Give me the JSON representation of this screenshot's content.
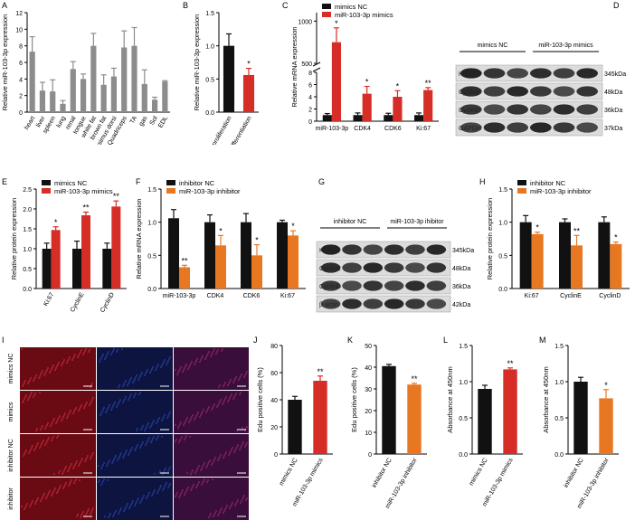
{
  "colors": {
    "grey": "#8c8c8c",
    "black": "#111111",
    "red": "#d62d27",
    "orange": "#e87722"
  },
  "chart_data": [
    {
      "letter": "A",
      "type": "bar",
      "ylabel": "Relative miR-103-3p expression",
      "ylim": [
        0,
        12
      ],
      "yticks": [
        "0",
        "2",
        "4",
        "6",
        "8",
        "10",
        "12"
      ],
      "categories": [
        "heart",
        "liver",
        "spleen",
        "lung",
        "renal",
        "tongue",
        "white fat",
        "brown fat",
        "Longissimus dorsi",
        "Quadriceps",
        "TA",
        "gas",
        "Sol",
        "EDL"
      ],
      "series": [
        {
          "color": "grey",
          "values": [
            7.3,
            2.6,
            2.5,
            1.0,
            5.2,
            4.0,
            8.0,
            3.3,
            4.3,
            7.8,
            8.0,
            3.4,
            1.5,
            3.7
          ],
          "errors": [
            1.8,
            1.0,
            1.4,
            0.4,
            0.9,
            0.6,
            1.5,
            1.2,
            1.0,
            2.0,
            2.2,
            1.7,
            0.3,
            0.1
          ]
        }
      ]
    },
    {
      "letter": "B",
      "type": "bar",
      "ylabel": "Relative miR-103-3p expression",
      "ylim": [
        0,
        1.5
      ],
      "yticks": [
        "0.0",
        "0.5",
        "1.0",
        "1.5"
      ],
      "categories": [
        "proliferation",
        "differentiation"
      ],
      "series": [
        {
          "colors": [
            "black",
            "red"
          ],
          "values": [
            1.0,
            0.56
          ],
          "errors": [
            0.18,
            0.1
          ]
        }
      ],
      "sig": [
        "",
        "*"
      ]
    },
    {
      "letter": "C",
      "type": "bar",
      "ylabel": "Relative mRNA expression",
      "broken_axis": true,
      "ylim_low": [
        0,
        8
      ],
      "yticks_low": [
        "0",
        "2",
        "4",
        "6",
        "8"
      ],
      "ylim_high": [
        500,
        1100
      ],
      "yticks_high": [
        "500",
        "1000"
      ],
      "categories": [
        "miR-103-3p",
        "CDK4",
        "CDK6",
        "Ki:67"
      ],
      "series": [
        {
          "name": "mimics NC",
          "color": "black",
          "values": [
            1.0,
            1.0,
            1.0,
            1.0
          ],
          "errors": [
            0.25,
            0.35,
            0.3,
            0.35
          ]
        },
        {
          "name": "miR-103-3p mimics",
          "color": "red",
          "values": [
            750,
            4.5,
            4.0,
            5.1
          ],
          "errors": [
            170,
            1.2,
            1.0,
            0.4
          ]
        }
      ],
      "sig": [
        "*",
        "*",
        "*",
        "**"
      ]
    },
    {
      "letter": "E",
      "type": "bar",
      "ylabel": "Relative protein expression",
      "ylim": [
        0,
        2.5
      ],
      "yticks": [
        "0.0",
        "0.5",
        "1.0",
        "1.5",
        "2.0",
        "2.5"
      ],
      "categories": [
        "Ki:67",
        "CyclinE",
        "CyclinD"
      ],
      "series": [
        {
          "name": "mimics NC",
          "color": "black",
          "values": [
            1.0,
            1.0,
            1.0
          ],
          "errors": [
            0.14,
            0.19,
            0.14
          ]
        },
        {
          "name": "miR-103-3p mimics",
          "color": "red",
          "values": [
            1.47,
            1.84,
            2.06
          ],
          "errors": [
            0.08,
            0.08,
            0.14
          ]
        }
      ],
      "sig": [
        "*",
        "**",
        "**"
      ]
    },
    {
      "letter": "F",
      "type": "bar",
      "ylabel": "Relative mRNA expression",
      "ylim": [
        0,
        1.5
      ],
      "yticks": [
        "0.0",
        "0.5",
        "1.0",
        "1.5"
      ],
      "categories": [
        "miR-103-3p",
        "CDK4",
        "CDK6",
        "Ki:67"
      ],
      "series": [
        {
          "name": "inhibitor NC",
          "color": "black",
          "values": [
            1.06,
            1.0,
            1.0,
            1.0
          ],
          "errors": [
            0.13,
            0.11,
            0.13,
            0.03
          ]
        },
        {
          "name": "miR-103-3p inhibitor",
          "color": "orange",
          "values": [
            0.32,
            0.65,
            0.5,
            0.8
          ],
          "errors": [
            0.03,
            0.15,
            0.16,
            0.07
          ]
        }
      ],
      "sig": [
        "**",
        "*",
        "*",
        "*"
      ]
    },
    {
      "letter": "H",
      "type": "bar",
      "ylabel": "Relative protein expression",
      "ylim": [
        0,
        1.5
      ],
      "yticks": [
        "0.0",
        "0.5",
        "1.0",
        "1.5"
      ],
      "categories": [
        "Ki:67",
        "CyclinE",
        "CyclinD"
      ],
      "series": [
        {
          "name": "inhibitor NC",
          "color": "black",
          "values": [
            1.0,
            1.0,
            1.0
          ],
          "errors": [
            0.1,
            0.05,
            0.08
          ]
        },
        {
          "name": "miR-103-3p inhibitor",
          "color": "orange",
          "values": [
            0.82,
            0.65,
            0.67
          ],
          "errors": [
            0.03,
            0.15,
            0.03
          ]
        }
      ],
      "sig": [
        "*",
        "**",
        "*"
      ]
    },
    {
      "letter": "J",
      "type": "bar",
      "ylabel": "Edu positive cells (%)",
      "ylim": [
        0,
        80
      ],
      "yticks": [
        "0",
        "20",
        "40",
        "60",
        "80"
      ],
      "categories": [
        "mimics NC",
        "miR-103-3p mimics"
      ],
      "series": [
        {
          "colors": [
            "black",
            "red"
          ],
          "values": [
            40,
            54
          ],
          "errors": [
            2.5,
            3.5
          ]
        }
      ],
      "sig": [
        "",
        "**"
      ]
    },
    {
      "letter": "K",
      "type": "bar",
      "ylabel": "Edu positive cells (%)",
      "ylim": [
        0,
        50
      ],
      "yticks": [
        "0",
        "10",
        "20",
        "30",
        "40",
        "50"
      ],
      "categories": [
        "inhibitor NC",
        "miR-103-3p inhibitor"
      ],
      "series": [
        {
          "colors": [
            "black",
            "orange"
          ],
          "values": [
            40.5,
            32
          ],
          "errors": [
            0.8,
            0.6
          ]
        }
      ],
      "sig": [
        "",
        "**"
      ]
    },
    {
      "letter": "L",
      "type": "bar",
      "ylabel": "Absorbance at 450nm",
      "ylim": [
        0,
        1.5
      ],
      "yticks": [
        "0.0",
        "0.5",
        "1.0",
        "1.5"
      ],
      "categories": [
        "mimics NC",
        "miR-103-3p mimics"
      ],
      "series": [
        {
          "colors": [
            "black",
            "red"
          ],
          "values": [
            0.9,
            1.17
          ],
          "errors": [
            0.05,
            0.02
          ]
        }
      ],
      "sig": [
        "",
        "**"
      ]
    },
    {
      "letter": "M",
      "type": "bar",
      "ylabel": "Absorbance at 450nm",
      "ylim": [
        0,
        1.5
      ],
      "yticks": [
        "0.0",
        "0.5",
        "1.0",
        "1.5"
      ],
      "categories": [
        "inhibitor NC",
        "miR-103-3p inhibitor"
      ],
      "series": [
        {
          "colors": [
            "black",
            "orange"
          ],
          "values": [
            1.0,
            0.77
          ],
          "errors": [
            0.06,
            0.12
          ]
        }
      ],
      "sig": [
        "",
        "*"
      ]
    }
  ],
  "blots": {
    "D": {
      "letter": "D",
      "groups": [
        "mimics NC",
        "miR-103-3p mimics"
      ],
      "rows": [
        {
          "label": "Ki:67",
          "size": "345kDa"
        },
        {
          "label": "CyclinE",
          "size": "48kDa"
        },
        {
          "label": "CyclinD",
          "size": "36kDa"
        },
        {
          "label": "GAPDH",
          "size": "37kDa"
        }
      ]
    },
    "G": {
      "letter": "G",
      "groups": [
        "inhibitor NC",
        "miR-103-3p ihibitor"
      ],
      "rows": [
        {
          "label": "Ki:67",
          "size": "345kDa"
        },
        {
          "label": "CyclinE",
          "size": "48kDa"
        },
        {
          "label": "CyclinD",
          "size": "36kDa"
        },
        {
          "label": "β-actin",
          "size": "42kDa"
        }
      ]
    }
  },
  "micrograph": {
    "letter": "I",
    "columns": [
      "EdU",
      "Hoechst",
      "Merge"
    ],
    "rows": [
      "mimics NC",
      "mimics",
      "inhibitor NC",
      "inhibitor"
    ]
  }
}
